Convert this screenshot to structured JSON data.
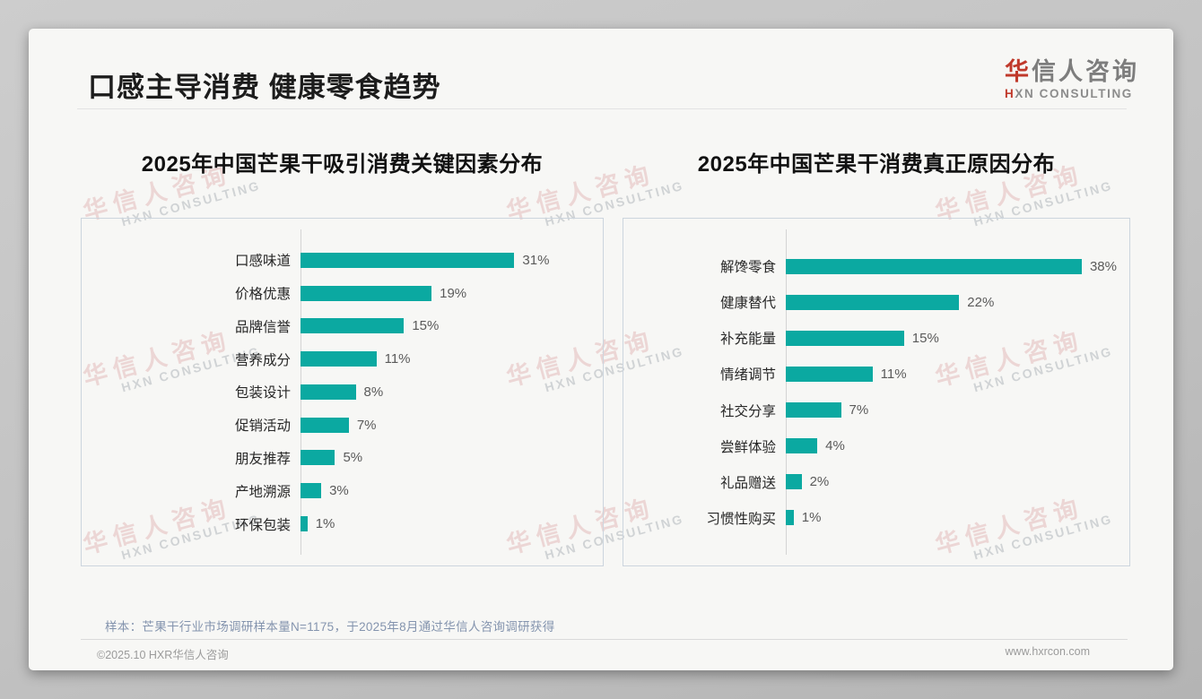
{
  "slide": {
    "title": "口感主导消费 健康零食趋势",
    "logo": {
      "cn_accent": "华",
      "cn_rest": "信人咨询",
      "en_accent": "H",
      "en_rest": "XN CONSULTING"
    },
    "watermark": {
      "line1": "华信人咨询",
      "line2": "HXN CONSULTING"
    },
    "footnote": "样本：芒果干行业市场调研样本量N=1175，于2025年8月通过华信人咨询调研获得",
    "copyright": "©2025.10 HXR华信人咨询",
    "website": "www.hxrcon.com"
  },
  "colors": {
    "bar_teal": "#0ba9a1",
    "accent_red": "#c0392b",
    "footnote_blue_gray": "#8494ae"
  },
  "chart_data": [
    {
      "type": "bar",
      "orientation": "horizontal",
      "title": "2025年中国芒果干吸引消费关键因素分布",
      "categories": [
        "口感味道",
        "价格优惠",
        "品牌信誉",
        "营养成分",
        "包装设计",
        "促销活动",
        "朋友推荐",
        "产地溯源",
        "环保包装"
      ],
      "values": [
        31,
        19,
        15,
        11,
        8,
        7,
        5,
        3,
        1
      ],
      "unit": "%",
      "xlim": [
        0,
        42
      ],
      "grid": false,
      "legend": false,
      "value_labels": "outside-end"
    },
    {
      "type": "bar",
      "orientation": "horizontal",
      "title": "2025年中国芒果干消费真正原因分布",
      "categories": [
        "解馋零食",
        "健康替代",
        "补充能量",
        "情绪调节",
        "社交分享",
        "尝鲜体验",
        "礼品赠送",
        "习惯性购买"
      ],
      "values": [
        38,
        22,
        15,
        11,
        7,
        4,
        2,
        1
      ],
      "unit": "%",
      "xlim": [
        0,
        42
      ],
      "grid": false,
      "legend": false,
      "value_labels": "outside-end"
    }
  ]
}
